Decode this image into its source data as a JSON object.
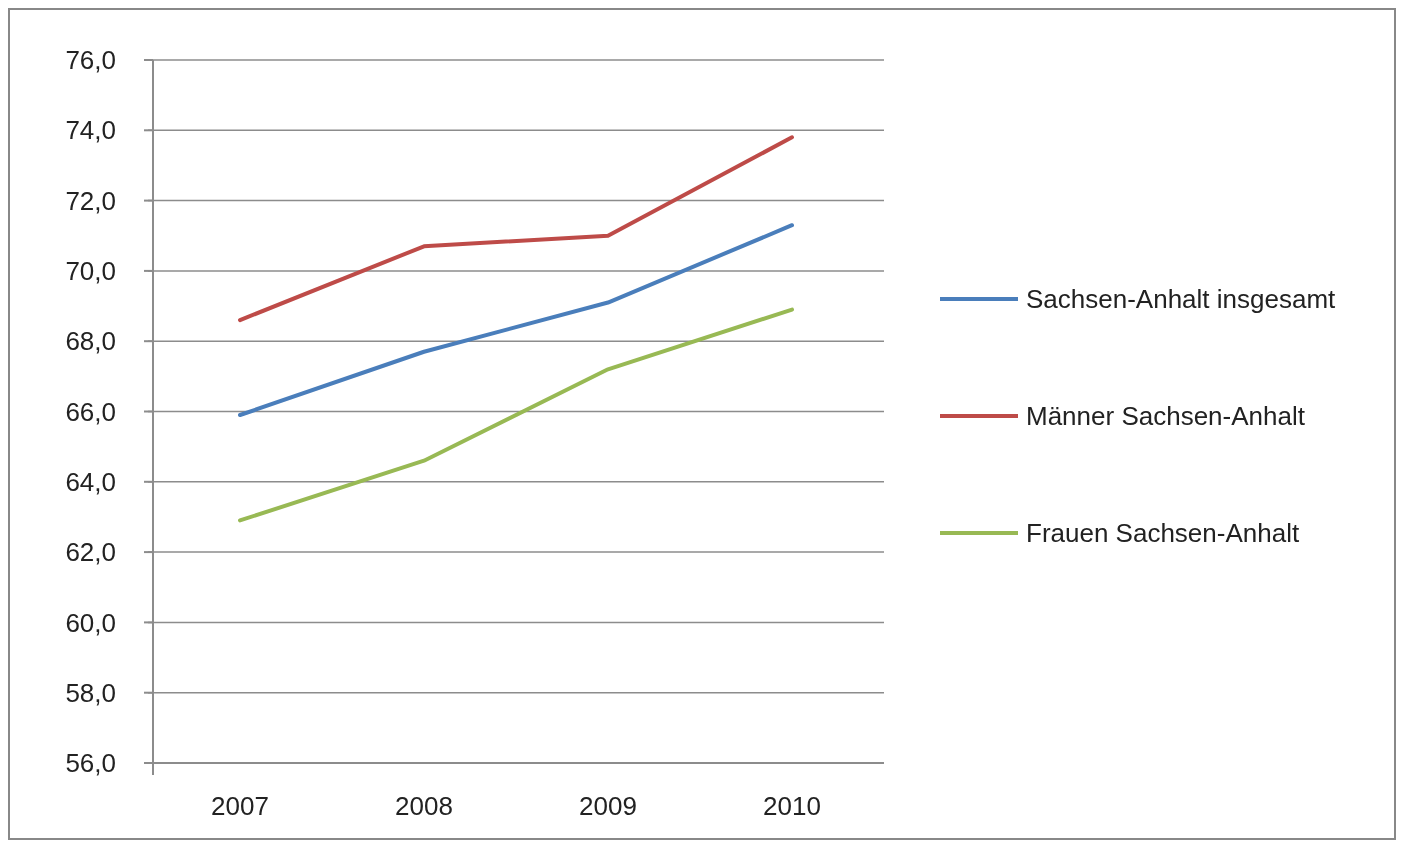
{
  "chart_data": {
    "type": "line",
    "categories": [
      "2007",
      "2008",
      "2009",
      "2010"
    ],
    "series": [
      {
        "name": "Sachsen-Anhalt insgesamt",
        "color": "#4a7ebb",
        "values": [
          65.9,
          67.7,
          69.1,
          71.3
        ]
      },
      {
        "name": "Männer Sachsen-Anhalt",
        "color": "#be4b48",
        "values": [
          68.6,
          70.7,
          71.0,
          73.8
        ]
      },
      {
        "name": "Frauen Sachsen-Anhalt",
        "color": "#98b954",
        "values": [
          62.9,
          64.6,
          67.2,
          68.9
        ]
      }
    ],
    "ylim": [
      56,
      76
    ],
    "yticks": [
      {
        "value": 56,
        "label": "56,0"
      },
      {
        "value": 58,
        "label": "58,0"
      },
      {
        "value": 60,
        "label": "60,0"
      },
      {
        "value": 62,
        "label": "62,0"
      },
      {
        "value": 64,
        "label": "64,0"
      },
      {
        "value": 66,
        "label": "66,0"
      },
      {
        "value": 68,
        "label": "68,0"
      },
      {
        "value": 70,
        "label": "70,0"
      },
      {
        "value": 72,
        "label": "72,0"
      },
      {
        "value": 74,
        "label": "74,0"
      },
      {
        "value": 76,
        "label": "76,0"
      }
    ],
    "grid": "y",
    "legend": "right",
    "marker": "none",
    "line_style": "solid"
  }
}
